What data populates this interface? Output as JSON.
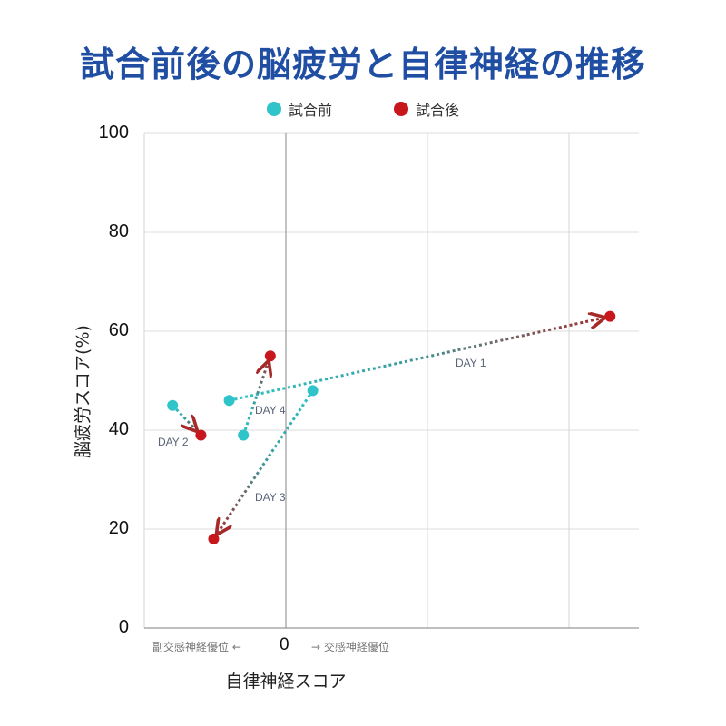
{
  "title": "試合前後の脳疲労と自律神経の推移",
  "legend": [
    {
      "label": "試合前",
      "color": "#2ec4c9"
    },
    {
      "label": "試合後",
      "color": "#c8161d"
    }
  ],
  "axes": {
    "y_label": "脳疲労スコア(%)",
    "y_ticks": [
      "100",
      "80",
      "60",
      "40",
      "20",
      "0"
    ],
    "x_label": "自律神経スコア",
    "x_zero": "0",
    "x_left_note": "副交感神経優位 ←",
    "x_right_note": "→ 交感神経優位"
  },
  "chart_data": {
    "type": "scatter",
    "title": "試合前後の脳疲労と自律神経の推移",
    "xlabel": "自律神経スコア",
    "ylabel": "脳疲労スコア(%)",
    "xlim": [
      -1.0,
      2.5
    ],
    "ylim": [
      0,
      100
    ],
    "yticks": [
      0,
      20,
      40,
      60,
      80,
      100
    ],
    "x_tick_labels": [
      "0"
    ],
    "x_annotations": [
      "副交感神経優位 ←",
      "→ 交感神経優位"
    ],
    "grid": true,
    "legend_position": "top",
    "series": [
      {
        "name": "試合前",
        "color": "#2ec4c9",
        "points": [
          {
            "label": "DAY 1",
            "x": -0.4,
            "y": 46
          },
          {
            "label": "DAY 2",
            "x": -0.8,
            "y": 45
          },
          {
            "label": "DAY 3",
            "x": 0.19,
            "y": 48
          },
          {
            "label": "DAY 4",
            "x": -0.3,
            "y": 39
          }
        ]
      },
      {
        "name": "試合後",
        "color": "#c8161d",
        "points": [
          {
            "label": "DAY 1",
            "x": 2.29,
            "y": 63
          },
          {
            "label": "DAY 2",
            "x": -0.6,
            "y": 39
          },
          {
            "label": "DAY 3",
            "x": -0.51,
            "y": 18
          },
          {
            "label": "DAY 4",
            "x": -0.11,
            "y": 55
          }
        ]
      }
    ],
    "arrows": [
      {
        "label": "DAY 1",
        "from": [
          -0.4,
          46
        ],
        "to": [
          2.29,
          63
        ]
      },
      {
        "label": "DAY 2",
        "from": [
          -0.8,
          45
        ],
        "to": [
          -0.6,
          39
        ]
      },
      {
        "label": "DAY 3",
        "from": [
          0.19,
          48
        ],
        "to": [
          -0.51,
          18
        ]
      },
      {
        "label": "DAY 4",
        "from": [
          -0.3,
          39
        ],
        "to": [
          -0.11,
          55
        ]
      }
    ]
  }
}
